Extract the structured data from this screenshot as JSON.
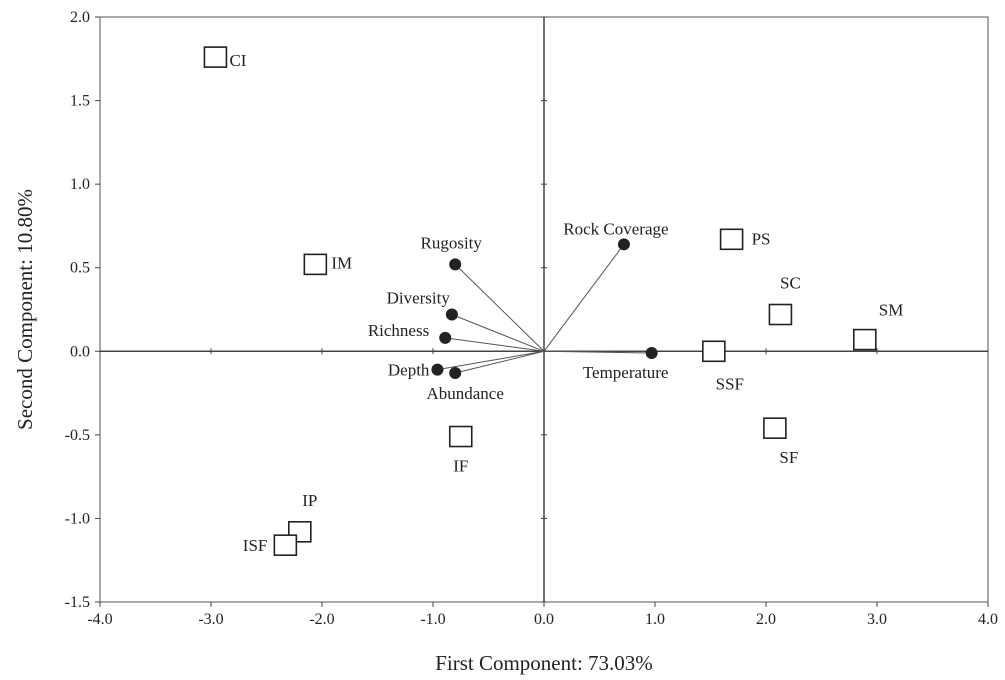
{
  "chart_data": {
    "type": "scatter",
    "title": "",
    "xlabel": "First Component: 73.03%",
    "ylabel": "Second Component: 10.80%",
    "xlim": [
      -4.0,
      4.0
    ],
    "ylim": [
      -1.5,
      2.0
    ],
    "x_ticks": [
      "-4.0",
      "-3.0",
      "-2.0",
      "-1.0",
      "0.0",
      "1.0",
      "2.0",
      "3.0",
      "4.0"
    ],
    "y_ticks": [
      "-1.5",
      "-1.0",
      "-0.5",
      "0.0",
      "0.5",
      "1.0",
      "1.5",
      "2.0"
    ],
    "grid": false,
    "series": [
      {
        "marker": "open-square",
        "points": [
          {
            "label": "CI",
            "x": -2.96,
            "y": 1.76
          },
          {
            "label": "IM",
            "x": -2.06,
            "y": 0.52
          },
          {
            "label": "IF",
            "x": -0.75,
            "y": -0.51
          },
          {
            "label": "IP",
            "x": -2.2,
            "y": -1.08
          },
          {
            "label": "ISF",
            "x": -2.33,
            "y": -1.16
          },
          {
            "label": "PS",
            "x": 1.69,
            "y": 0.67
          },
          {
            "label": "SC",
            "x": 2.13,
            "y": 0.22
          },
          {
            "label": "SM",
            "x": 2.89,
            "y": 0.07
          },
          {
            "label": "SSF",
            "x": 1.53,
            "y": 0.0
          },
          {
            "label": "SF",
            "x": 2.08,
            "y": -0.46
          }
        ]
      },
      {
        "marker": "filled-circle-vector",
        "points": [
          {
            "label": "Rugosity",
            "x": -0.8,
            "y": 0.52
          },
          {
            "label": "Diversity",
            "x": -0.83,
            "y": 0.22
          },
          {
            "label": "Richness",
            "x": -0.89,
            "y": 0.08
          },
          {
            "label": "Depth",
            "x": -0.96,
            "y": -0.11
          },
          {
            "label": "Abundance",
            "x": -0.8,
            "y": -0.13
          },
          {
            "label": "Rock Coverage",
            "x": 0.72,
            "y": 0.64
          },
          {
            "label": "Temperature",
            "x": 0.97,
            "y": -0.01
          }
        ]
      }
    ]
  }
}
